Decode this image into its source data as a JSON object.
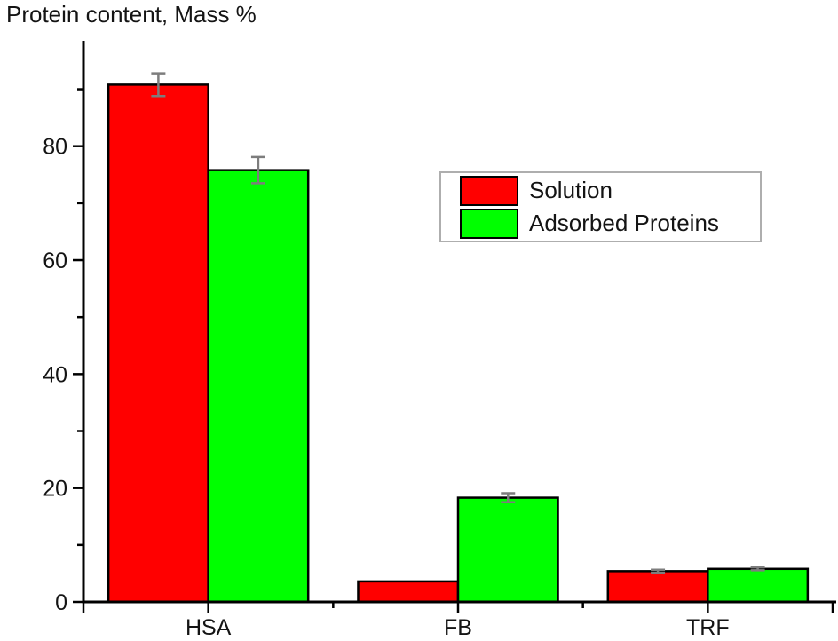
{
  "chart_data": {
    "type": "bar",
    "title": "Protein content, Mass %",
    "xlabel": "",
    "ylabel": "Protein content, Mass %",
    "categories": [
      "HSA",
      "FB",
      "TRF"
    ],
    "series": [
      {
        "name": "Solution",
        "color": "#ff0000",
        "values": [
          90.8,
          3.6,
          5.4
        ],
        "errors": [
          2.0,
          0,
          0.25
        ]
      },
      {
        "name": "Adsorbed Proteins",
        "color": "#00ff00",
        "values": [
          75.8,
          18.3,
          5.8
        ],
        "errors": [
          2.3,
          0.8,
          0.25
        ]
      }
    ],
    "ylim": [
      0,
      98.5
    ],
    "y_ticks": {
      "major": [
        0,
        20,
        40,
        60,
        80
      ],
      "minor": [
        10,
        30,
        50,
        70,
        90
      ]
    },
    "grid": false,
    "legend": {
      "position": "upper-right-inside",
      "entries": [
        "Solution",
        "Adsorbed Proteins"
      ]
    },
    "bar_edge_color": "#000000",
    "axis_color": "#000000",
    "error_bar_color": "#7d7d7d"
  }
}
